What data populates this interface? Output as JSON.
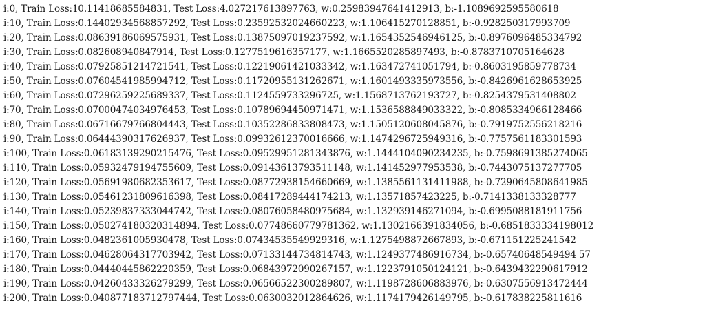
{
  "console": {
    "lines": [
      "i:0, Train Loss:10.11418685584831, Test Loss:4.027217613897763, w:0.25983947641412913, b:-1.1089692595580618",
      "i:10, Train Loss:0.14402934568857292, Test Loss:0.23592532024660223, w:1.106415270128851, b:-0.928250317993709",
      "i:20, Train Loss:0.08639186069575931, Test Loss:0.13875097019237592, w:1.1654352546946125, b:-0.8976096485334792",
      "i:30, Train Loss:0.082608940847914, Test Loss:0.1277519616357177, w:1.1665520285897493, b:-0.8783710705164628",
      "i:40, Train Loss:0.07925851214721541, Test Loss:0.12219061421033342, w:1.163472741051794, b:-0.8603195859778734",
      "i:50, Train Loss:0.07604541985994712, Test Loss:0.11720955131262671, w:1.1601493335973556, b:-0.8426961628653925",
      "i:60, Train Loss:0.07296259225689337, Test Loss:0.1124559733296725, w:1.1568713762193727, b:-0.8254379531408802",
      "i:70, Train Loss:0.07000474034976453, Test Loss:0.10789694450971471, w:1.1536588849033322, b:-0.8085334966128466",
      "i:80, Train Loss:0.06716679766804443, Test Loss:0.10352286833808473, w:1.1505120608045876, b:-0.7919752556218216",
      "i:90, Train Loss:0.06444390317626937, Test Loss:0.09932612370016666, w:1.1474296725949316, b:-0.7757561183301593",
      "i:100, Train Loss:0.06183139290215476, Test Loss:0.09529951281343876, w:1.1444104090234235, b:-0.7598691385274065",
      "i:110, Train Loss:0.05932479194755609, Test Loss:0.09143613793511148, w:1.141452977953538, b:-0.7443075137277705",
      "i:120, Train Loss:0.05691980682353617, Test Loss:0.08772938154660669, w:1.1385561131411988, b:-0.7290645808641985",
      "i:130, Train Loss:0.05461231809616398, Test Loss:0.08417289444174213, w:1.13571857423225, b:-0.7141338133328777",
      "i:140, Train Loss:0.05239837333044742, Test Loss:0.08076058480975684, w:1.132939146271094, b:-0.6995088181911756",
      "i:150, Train Loss:0.050274180320314894, Test Loss:0.07748660779781362, w:1.1302166391834056, b:-0.6851833334198012",
      "i:160, Train Loss:0.0482361005930478, Test Loss:0.07434535549929316, w:1.1275498872667893, b:-0.671151225241542",
      "i:170, Train Loss:0.04628064317703942, Test Loss:0.07133144734814743, w:1.1249377486916734, b:-0.65740648549494 57",
      "i:180, Train Loss:0.04440445862220359, Test Loss:0.06843972090267157, w:1.1223791050124121, b:-0.6439432290617912",
      "i:190, Train Loss:0.04260433326279299, Test Loss:0.06566522300289807, w:1.1198728606883976, b:-0.6307556913472444",
      "i:200, Train Loss:0.040877183712797444, Test Loss:0.0630032012864626, w:1.1174179426149795, b:-0.617838225811616"
    ]
  }
}
